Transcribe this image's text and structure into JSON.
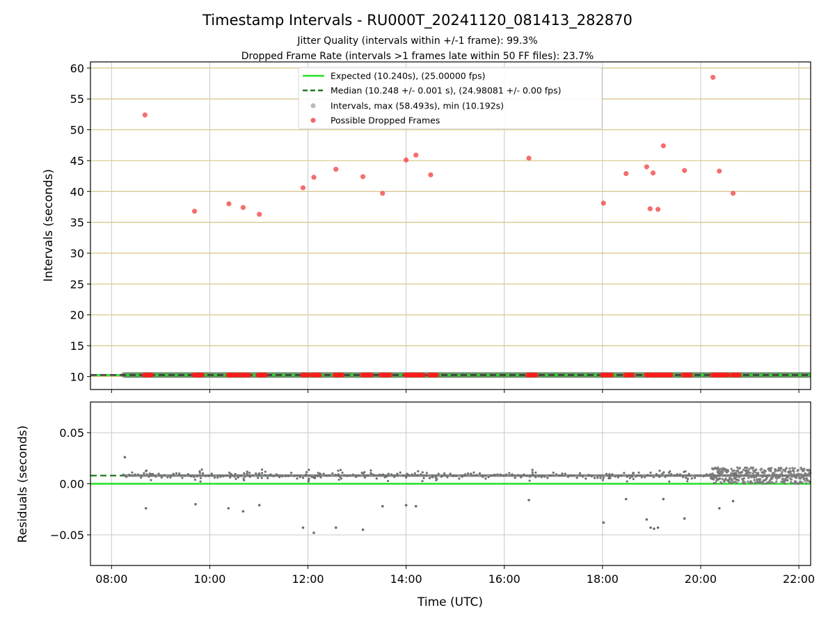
{
  "chart_data": {
    "type": "scatter",
    "title": "Timestamp Intervals - RU000T_20241120_081413_282870",
    "subtitle_lines": [
      "Jitter Quality (intervals within +/-1 frame): 99.3%",
      "Dropped Frame Rate (intervals >1 frames late within 50 FF files): 23.7%"
    ],
    "xlabel": "Time (UTC)",
    "x_ticks": [
      "08:00",
      "10:00",
      "12:00",
      "14:00",
      "16:00",
      "18:00",
      "20:00",
      "22:00"
    ],
    "x_tick_hours": [
      8,
      10,
      12,
      14,
      16,
      18,
      20,
      22
    ],
    "x_range_hours": [
      7.57,
      22.24
    ],
    "top_panel": {
      "ylabel": "Intervals (seconds)",
      "ylim": [
        7.9,
        61.0
      ],
      "y_ticks": [
        10,
        15,
        20,
        25,
        30,
        35,
        40,
        45,
        50,
        55,
        60
      ],
      "grid": "horizontal",
      "grid_color": "#d6c380",
      "expected": 10.24,
      "median": 10.248,
      "data_range_hours": [
        8.24,
        22.24
      ],
      "legend": {
        "position": "top-center",
        "entries": [
          {
            "label": "Expected (10.240s), (25.00000 fps)",
            "style": "solid-line",
            "color": "#22e022"
          },
          {
            "label": "Median (10.248 +/- 0.001 s), (24.98081 +/- 0.00 fps)",
            "style": "dashed-line",
            "color": "#1a7a1a"
          },
          {
            "label": "Intervals, max (58.493s), min (10.192s)",
            "style": "dot",
            "color": "#8c8c8c"
          },
          {
            "label": "Possible Dropped Frames",
            "style": "dot",
            "color": "#f24a4a"
          }
        ]
      },
      "dropped_frames": [
        {
          "t": 8.68,
          "y": 52.4
        },
        {
          "t": 9.69,
          "y": 36.8
        },
        {
          "t": 10.39,
          "y": 38.0
        },
        {
          "t": 10.68,
          "y": 37.4
        },
        {
          "t": 11.01,
          "y": 36.3
        },
        {
          "t": 11.9,
          "y": 40.6
        },
        {
          "t": 12.12,
          "y": 42.3
        },
        {
          "t": 12.57,
          "y": 43.6
        },
        {
          "t": 13.12,
          "y": 42.4
        },
        {
          "t": 13.52,
          "y": 39.7
        },
        {
          "t": 14.0,
          "y": 45.1
        },
        {
          "t": 14.2,
          "y": 45.9
        },
        {
          "t": 14.5,
          "y": 42.7
        },
        {
          "t": 16.5,
          "y": 45.4
        },
        {
          "t": 18.02,
          "y": 38.1
        },
        {
          "t": 18.48,
          "y": 42.9
        },
        {
          "t": 18.9,
          "y": 44.0
        },
        {
          "t": 18.97,
          "y": 37.2
        },
        {
          "t": 19.03,
          "y": 43.0
        },
        {
          "t": 19.13,
          "y": 37.1
        },
        {
          "t": 19.24,
          "y": 47.4
        },
        {
          "t": 19.67,
          "y": 43.4
        },
        {
          "t": 20.25,
          "y": 58.5
        },
        {
          "t": 20.38,
          "y": 43.3
        },
        {
          "t": 20.66,
          "y": 39.7
        }
      ],
      "near_median_dropped_clusters": [
        [
          8.66,
          8.84
        ],
        [
          9.67,
          9.86
        ],
        [
          10.37,
          10.6
        ],
        [
          10.64,
          10.82
        ],
        [
          10.98,
          11.15
        ],
        [
          11.88,
          12.02
        ],
        [
          12.08,
          12.26
        ],
        [
          12.54,
          12.72
        ],
        [
          13.1,
          13.3
        ],
        [
          13.48,
          13.68
        ],
        [
          13.98,
          14.36
        ],
        [
          14.47,
          14.64
        ],
        [
          16.47,
          16.66
        ],
        [
          17.99,
          18.2
        ],
        [
          18.46,
          18.64
        ],
        [
          18.88,
          19.42
        ],
        [
          19.64,
          19.82
        ],
        [
          20.23,
          20.56
        ],
        [
          20.63,
          20.81
        ]
      ]
    },
    "bottom_panel": {
      "ylabel": "Residuals (seconds)",
      "ylim": [
        -0.08,
        0.08
      ],
      "y_ticks": [
        0.05,
        0.0,
        -0.05
      ],
      "y_tick_labels": [
        "0.05",
        "0.00",
        "−0.05"
      ],
      "grid": "both",
      "expected_residual": 0.0,
      "median_residual": 0.008,
      "outliers": [
        {
          "t": 8.27,
          "y": 0.026
        },
        {
          "t": 8.7,
          "y": -0.024
        },
        {
          "t": 9.71,
          "y": -0.02
        },
        {
          "t": 10.38,
          "y": -0.024
        },
        {
          "t": 10.68,
          "y": -0.027
        },
        {
          "t": 11.01,
          "y": -0.021
        },
        {
          "t": 11.9,
          "y": -0.043
        },
        {
          "t": 12.12,
          "y": -0.048
        },
        {
          "t": 12.57,
          "y": -0.043
        },
        {
          "t": 13.12,
          "y": -0.045
        },
        {
          "t": 13.52,
          "y": -0.022
        },
        {
          "t": 14.0,
          "y": -0.021
        },
        {
          "t": 14.2,
          "y": -0.022
        },
        {
          "t": 16.5,
          "y": -0.016
        },
        {
          "t": 18.02,
          "y": -0.038
        },
        {
          "t": 18.48,
          "y": -0.015
        },
        {
          "t": 18.9,
          "y": -0.035
        },
        {
          "t": 18.98,
          "y": -0.043
        },
        {
          "t": 19.05,
          "y": -0.044
        },
        {
          "t": 19.13,
          "y": -0.043
        },
        {
          "t": 19.24,
          "y": -0.015
        },
        {
          "t": 19.67,
          "y": -0.034
        },
        {
          "t": 20.38,
          "y": -0.024
        },
        {
          "t": 20.66,
          "y": -0.017
        }
      ]
    }
  }
}
